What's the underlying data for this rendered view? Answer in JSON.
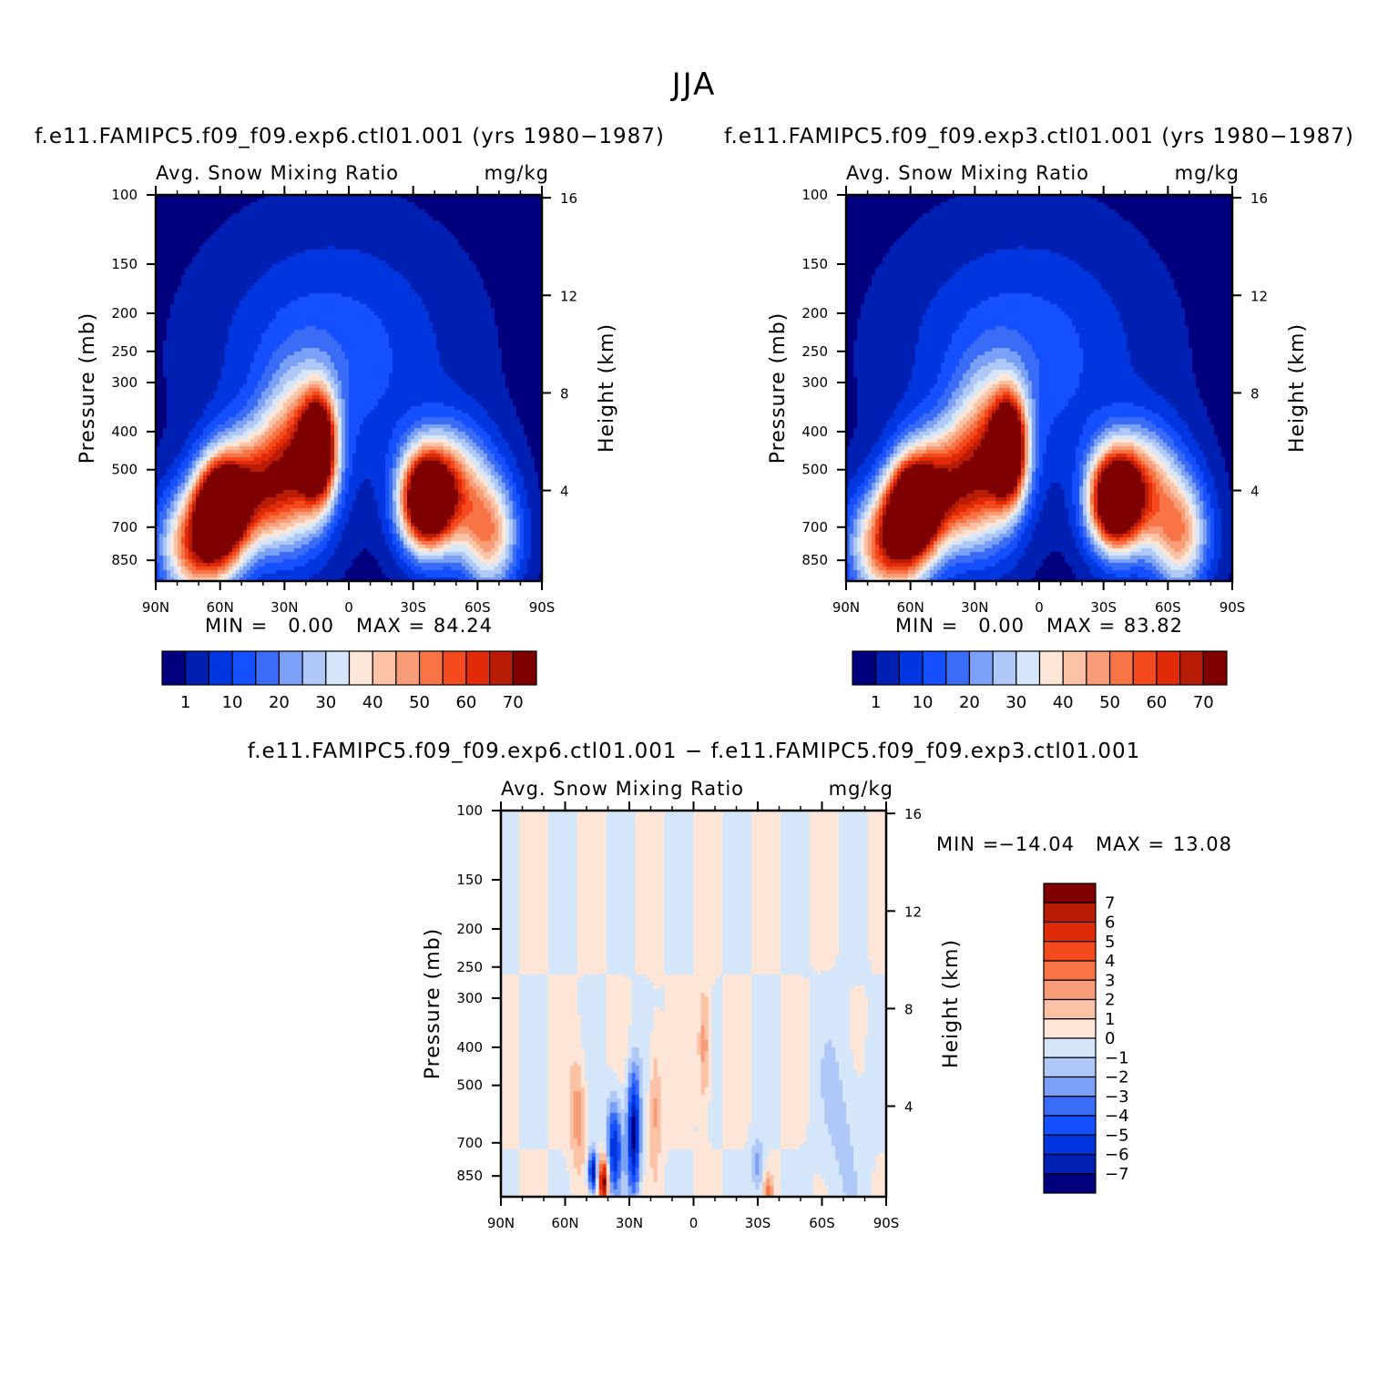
{
  "main_title": "JJA",
  "chart_data": [
    {
      "type": "heatmap",
      "id": "panel1",
      "title": "f.e11.FAMIPC5.f09_f09.exp6.ctl01.001 (yrs 1980-1987)",
      "left_subtitle": "Avg. Snow Mixing Ratio",
      "right_subtitle": "mg/kg",
      "ylabel": "Pressure (mb)",
      "y2label": "Height (km)",
      "x_ticks": [
        "90N",
        "60N",
        "30N",
        "0",
        "30S",
        "60S",
        "90S"
      ],
      "y_ticks": [
        "100",
        "150",
        "200",
        "250",
        "300",
        "400",
        "500",
        "700",
        "850"
      ],
      "y2_ticks": [
        "16",
        "12",
        "8",
        "4"
      ],
      "min_label": "MIN =",
      "min": "0.00",
      "max_label": "MAX =",
      "max": "84.24",
      "colorbar_labels": [
        "1",
        "10",
        "20",
        "30",
        "40",
        "50",
        "60",
        "70"
      ]
    },
    {
      "type": "heatmap",
      "id": "panel2",
      "title": "f.e11.FAMIPC5.f09_f09.exp3.ctl01.001 (yrs 1980-1987)",
      "left_subtitle": "Avg. Snow Mixing Ratio",
      "right_subtitle": "mg/kg",
      "ylabel": "Pressure (mb)",
      "y2label": "Height (km)",
      "x_ticks": [
        "90N",
        "60N",
        "30N",
        "0",
        "30S",
        "60S",
        "90S"
      ],
      "y_ticks": [
        "100",
        "150",
        "200",
        "250",
        "300",
        "400",
        "500",
        "700",
        "850"
      ],
      "y2_ticks": [
        "16",
        "12",
        "8",
        "4"
      ],
      "min_label": "MIN =",
      "min": "0.00",
      "max_label": "MAX =",
      "max": "83.82",
      "colorbar_labels": [
        "1",
        "10",
        "20",
        "30",
        "40",
        "50",
        "60",
        "70"
      ]
    },
    {
      "type": "heatmap",
      "id": "panel3",
      "title": "f.e11.FAMIPC5.f09_f09.exp6.ctl01.001 - f.e11.FAMIPC5.f09_f09.exp3.ctl01.001",
      "left_subtitle": "Avg. Snow Mixing Ratio",
      "right_subtitle": "mg/kg",
      "ylabel": "Pressure (mb)",
      "y2label": "Height (km)",
      "x_ticks": [
        "90N",
        "60N",
        "30N",
        "0",
        "30S",
        "60S",
        "90S"
      ],
      "y_ticks": [
        "100",
        "150",
        "200",
        "250",
        "300",
        "400",
        "500",
        "700",
        "850"
      ],
      "y2_ticks": [
        "16",
        "12",
        "8",
        "4"
      ],
      "min_label": "MIN =",
      "min": "-14.04",
      "max_label": "MAX =",
      "max": "13.08",
      "colorbar_labels": [
        "7",
        "6",
        "5",
        "4",
        "3",
        "2",
        "1",
        "0",
        "-1",
        "-2",
        "-3",
        "-4",
        "-5",
        "-6",
        "-7"
      ]
    }
  ],
  "colors": {
    "levels": [
      "#00007f",
      "#0020b4",
      "#0036e0",
      "#1450ff",
      "#3a6cf8",
      "#7aa0f8",
      "#b0c8f8",
      "#d6e6fa",
      "#fde6d8",
      "#fcc2a6",
      "#f99c78",
      "#f87444",
      "#f54a1e",
      "#e02a08",
      "#b81c04",
      "#7f0000"
    ]
  }
}
